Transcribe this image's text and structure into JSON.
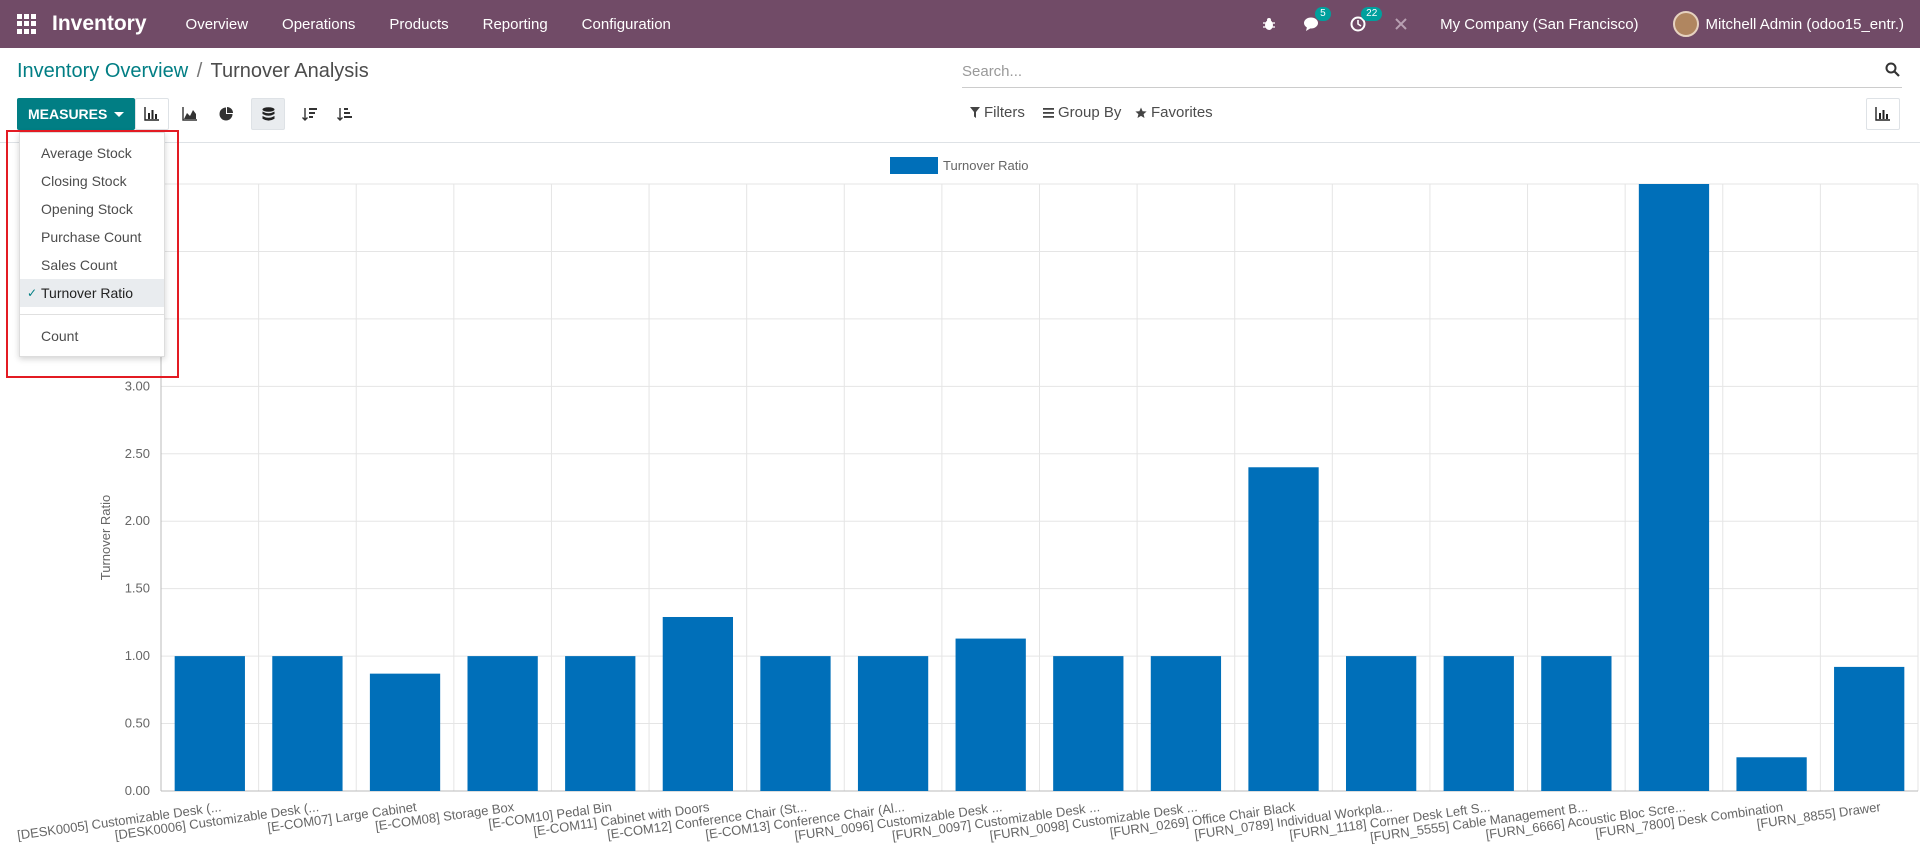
{
  "topbar": {
    "app_name": "Inventory",
    "menus": [
      "Overview",
      "Operations",
      "Products",
      "Reporting",
      "Configuration"
    ],
    "messages_count": "5",
    "activities_count": "22",
    "company": "My Company (San Francisco)",
    "user": "Mitchell Admin (odoo15_entr.)"
  },
  "breadcrumb": {
    "parent": "Inventory Overview",
    "separator": "/",
    "current": "Turnover Analysis"
  },
  "search": {
    "placeholder": "Search..."
  },
  "toolbar": {
    "measures_label": "MEASURES",
    "filters_label": "Filters",
    "groupby_label": "Group By",
    "favorites_label": "Favorites"
  },
  "measures_menu": {
    "items": [
      "Average Stock",
      "Closing Stock",
      "Opening Stock",
      "Purchase Count",
      "Sales Count",
      "Turnover Ratio"
    ],
    "selected": "Turnover Ratio",
    "extra": "Count"
  },
  "colors": {
    "brand": "#714b67",
    "accent": "#017e84",
    "bar": "#006fb9",
    "highlight": "#e31b23"
  },
  "chart_data": {
    "type": "bar",
    "ylabel": "Turnover Ratio",
    "ylim": [
      0,
      4.5
    ],
    "yticks": [
      "0.00",
      "0.50",
      "1.00",
      "1.50",
      "2.00",
      "2.50",
      "3.00"
    ],
    "grid": true,
    "legend": {
      "position": "top-center",
      "label": "Turnover Ratio"
    },
    "categories": [
      "[DESK0005] Customizable Desk (...",
      "[DESK0006] Customizable Desk (...",
      "[E-COM07] Large Cabinet",
      "[E-COM08] Storage Box",
      "[E-COM10] Pedal Bin",
      "[E-COM11] Cabinet with Doors",
      "[E-COM12] Conference Chair (St...",
      "[E-COM13] Conference Chair (Al...",
      "[FURN_0096] Customizable Desk ...",
      "[FURN_0097] Customizable Desk ...",
      "[FURN_0098] Customizable Desk ...",
      "[FURN_0269] Office Chair Black",
      "[FURN_0789] Individual Workpla...",
      "[FURN_1118] Corner Desk Left S...",
      "[FURN_5555] Cable Management B...",
      "[FURN_6666] Acoustic Bloc Scre...",
      "[FURN_7800] Desk Combination",
      "[FURN_8855] Drawer"
    ],
    "series": [
      {
        "name": "Turnover Ratio",
        "values": [
          1.0,
          1.0,
          0.87,
          1.0,
          1.0,
          1.29,
          1.0,
          1.0,
          1.13,
          1.0,
          1.0,
          2.4,
          1.0,
          1.0,
          1.0,
          4.5,
          0.25,
          0.92
        ]
      }
    ]
  }
}
